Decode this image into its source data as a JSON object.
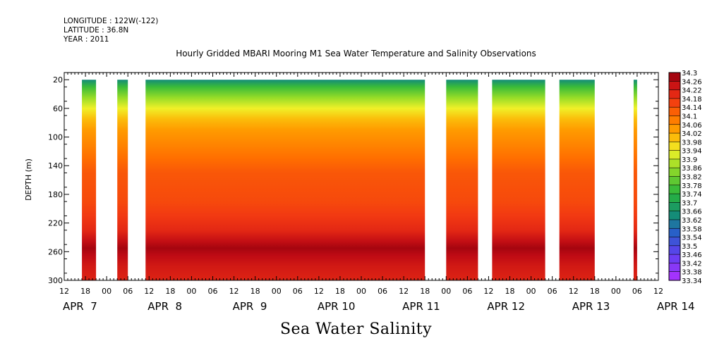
{
  "header": {
    "longitude": "LONGITUDE : 122W(-122)",
    "latitude": "LATITUDE : 36.8N",
    "year": "YEAR : 2011"
  },
  "colors": {
    "plot_bg": "#ffffff",
    "axis": "#000000"
  },
  "chart_data": {
    "type": "heatmap",
    "title": "Hourly Gridded MBARI Mooring M1 Sea Water Temperature and Salinity Observations",
    "bottom_title": "Sea Water Salinity",
    "ylabel": "DEPTH (m)",
    "ylim": [
      300,
      10
    ],
    "yticks": [
      20,
      60,
      100,
      140,
      180,
      220,
      260,
      300
    ],
    "x_start": "APR 7 12:00",
    "x_end": "APR 14 12:00",
    "xlim_hours": [
      0,
      168
    ],
    "hour_tick_labels": [
      "12",
      "18",
      "00",
      "06",
      "12",
      "18",
      "00",
      "06",
      "12",
      "18",
      "00",
      "06",
      "12",
      "18",
      "00",
      "06",
      "12",
      "18",
      "00",
      "06",
      "12",
      "18",
      "00",
      "06",
      "12",
      "18",
      "00",
      "06",
      "12"
    ],
    "date_labels": [
      "APR  7",
      "APR  8",
      "APR  9",
      "APR 10",
      "APR 11",
      "APR 12",
      "APR 13",
      "APR 14"
    ],
    "data_segments": [
      {
        "from": "APR 7 17:00",
        "to": "APR 7 21:00"
      },
      {
        "from": "APR 8 03:00",
        "to": "APR 8 06:00"
      },
      {
        "from": "APR 8 11:00",
        "to": "APR 11 18:00"
      },
      {
        "from": "APR 12 00:00",
        "to": "APR 12 09:00"
      },
      {
        "from": "APR 12 13:00",
        "to": "APR 13 04:00"
      },
      {
        "from": "APR 13 08:00",
        "to": "APR 13 18:00"
      },
      {
        "from": "APR 14 05:00",
        "to": "APR 14 06:00"
      }
    ],
    "depth_profile": [
      {
        "depth": 20,
        "value": 33.64
      },
      {
        "depth": 30,
        "value": 33.76
      },
      {
        "depth": 45,
        "value": 33.86
      },
      {
        "depth": 60,
        "value": 33.94
      },
      {
        "depth": 75,
        "value": 34.0
      },
      {
        "depth": 90,
        "value": 34.04
      },
      {
        "depth": 110,
        "value": 34.07
      },
      {
        "depth": 130,
        "value": 34.1
      },
      {
        "depth": 150,
        "value": 34.13
      },
      {
        "depth": 170,
        "value": 34.14
      },
      {
        "depth": 190,
        "value": 34.15
      },
      {
        "depth": 210,
        "value": 34.17
      },
      {
        "depth": 230,
        "value": 34.2
      },
      {
        "depth": 245,
        "value": 34.25
      },
      {
        "depth": 255,
        "value": 34.28
      },
      {
        "depth": 265,
        "value": 34.26
      },
      {
        "depth": 280,
        "value": 34.23
      },
      {
        "depth": 300,
        "value": 34.21
      }
    ],
    "colorbar": {
      "min": 33.34,
      "max": 34.3,
      "labels": [
        "34.3",
        "34.26",
        "34.22",
        "34.18",
        "34.14",
        "34.1",
        "34.06",
        "34.02",
        "33.98",
        "33.94",
        "33.9",
        "33.86",
        "33.82",
        "33.78",
        "33.74",
        "33.7",
        "33.66",
        "33.62",
        "33.58",
        "33.54",
        "33.5",
        "33.46",
        "33.42",
        "33.38",
        "33.34"
      ]
    }
  }
}
